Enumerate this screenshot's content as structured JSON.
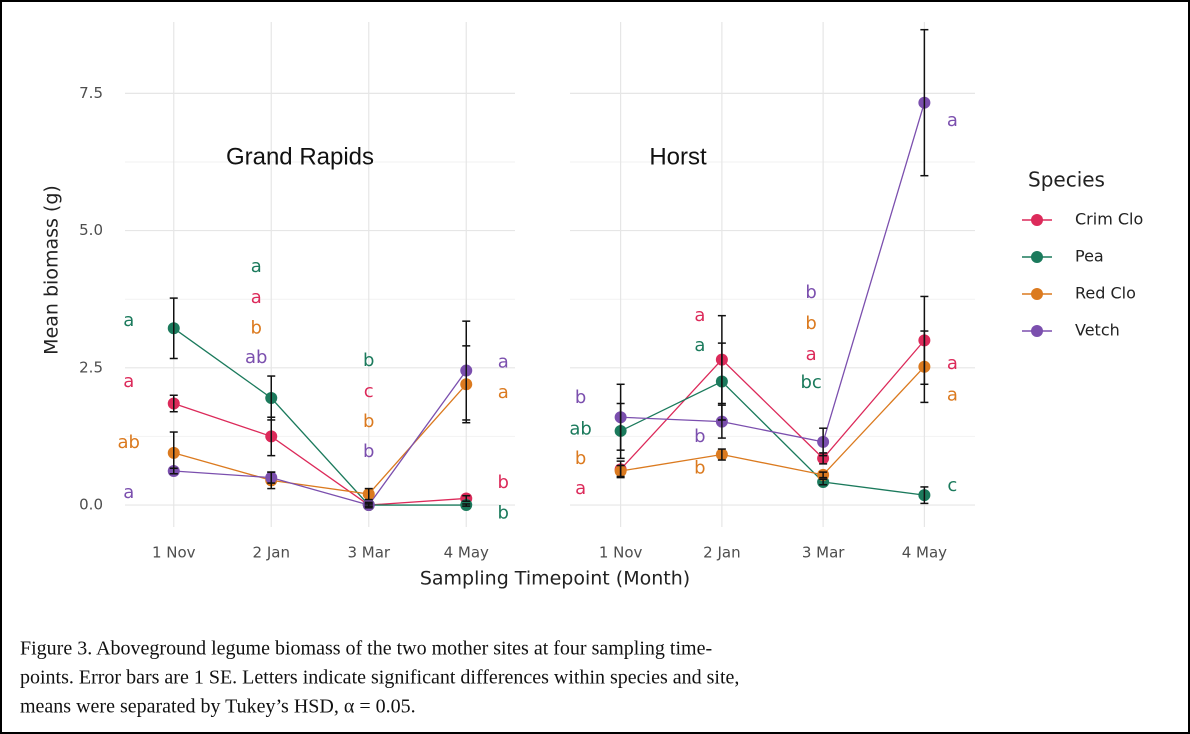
{
  "chart_data": {
    "type": "line",
    "xlabel": "Sampling  Timepoint (Month)",
    "ylabel": "Mean biomass (g)",
    "legend_title": "Species",
    "categories": [
      "1 Nov",
      "2 Jan",
      "3 Mar",
      "4 May"
    ],
    "ylim": [
      -0.4,
      8.8
    ],
    "yticks": [
      {
        "value": 0,
        "label": "0.0"
      },
      2.5,
      {
        "value": 5,
        "label": "5.0"
      },
      7.5
    ],
    "minor_yticks": [
      1.25,
      3.75,
      6.25
    ],
    "grid": true,
    "series": [
      {
        "name": "Crim Clo",
        "color": "#dc2a5a"
      },
      {
        "name": "Pea",
        "color": "#1b7a5c"
      },
      {
        "name": "Red Clo",
        "color": "#db7a1f"
      },
      {
        "name": "Vetch",
        "color": "#7b4fae"
      }
    ],
    "facets": [
      {
        "title": "Grand Rapids",
        "series": [
          {
            "values": [
              1.85,
              1.25,
              0.0,
              0.12
            ],
            "errors": [
              0.15,
              0.35,
              0.05,
              0.05
            ]
          },
          {
            "values": [
              3.22,
              1.95,
              0.0,
              0.0
            ],
            "errors": [
              0.55,
              0.4,
              0.02,
              0.02
            ]
          },
          {
            "values": [
              0.95,
              0.45,
              0.2,
              2.2
            ],
            "errors": [
              0.38,
              0.15,
              0.1,
              0.7
            ]
          },
          {
            "values": [
              0.62,
              0.5,
              0.0,
              2.45
            ],
            "errors": [
              0.05,
              0.1,
              0.02,
              0.9
            ]
          }
        ],
        "annotations": [
          {
            "text": "a",
            "x": "1 Nov",
            "y": 3.35,
            "color": "#1b7a5c"
          },
          {
            "text": "a",
            "x": "1 Nov",
            "y": 2.24,
            "color": "#dc2a5a"
          },
          {
            "text": "ab",
            "x": "1 Nov",
            "y": 1.13,
            "color": "#db7a1f"
          },
          {
            "text": "a",
            "x": "1 Nov",
            "y": 0.22,
            "color": "#7b4fae"
          },
          {
            "text": "a",
            "x": "2 Jan",
            "y": 4.34,
            "color": "#1b7a5c"
          },
          {
            "text": "a",
            "x": "2 Jan",
            "y": 3.77,
            "color": "#dc2a5a"
          },
          {
            "text": "b",
            "x": "2 Jan",
            "y": 3.22,
            "color": "#db7a1f"
          },
          {
            "text": "ab",
            "x": "2 Jan",
            "y": 2.68,
            "color": "#7b4fae"
          },
          {
            "text": "b",
            "x": "3 Mar",
            "y": 2.62,
            "color": "#1b7a5c"
          },
          {
            "text": "c",
            "x": "3 Mar",
            "y": 2.06,
            "color": "#dc2a5a"
          },
          {
            "text": "b",
            "x": "3 Mar",
            "y": 1.51,
            "color": "#db7a1f"
          },
          {
            "text": "b",
            "x": "3 Mar",
            "y": 0.97,
            "color": "#7b4fae"
          },
          {
            "text": "a",
            "x": "4 May",
            "y": 2.6,
            "color": "#7b4fae"
          },
          {
            "text": "a",
            "x": "4 May",
            "y": 2.04,
            "color": "#db7a1f"
          },
          {
            "text": "b",
            "x": "4 May",
            "y": 0.4,
            "color": "#dc2a5a"
          },
          {
            "text": "b",
            "x": "4 May",
            "y": -0.15,
            "color": "#1b7a5c"
          }
        ]
      },
      {
        "title": "Horst",
        "series": [
          {
            "values": [
              0.65,
              2.65,
              0.85,
              3.0
            ],
            "errors": [
              0.15,
              0.8,
              0.1,
              0.8
            ]
          },
          {
            "values": [
              1.35,
              2.25,
              0.42,
              0.18
            ],
            "errors": [
              0.5,
              0.7,
              0.05,
              0.15
            ]
          },
          {
            "values": [
              0.62,
              0.92,
              0.55,
              2.52
            ],
            "errors": [
              0.1,
              0.1,
              0.05,
              0.65
            ]
          },
          {
            "values": [
              1.6,
              1.52,
              1.15,
              7.33
            ],
            "errors": [
              0.6,
              0.3,
              0.25,
              1.33
            ]
          }
        ],
        "annotations": [
          {
            "text": "b",
            "x": "1 Nov",
            "y": 1.95,
            "color": "#7b4fae"
          },
          {
            "text": "ab",
            "x": "1 Nov",
            "y": 1.38,
            "color": "#1b7a5c"
          },
          {
            "text": "b",
            "x": "1 Nov",
            "y": 0.84,
            "color": "#db7a1f"
          },
          {
            "text": "a",
            "x": "1 Nov",
            "y": 0.29,
            "color": "#dc2a5a"
          },
          {
            "text": "a",
            "x": "2 Jan",
            "y": 3.44,
            "color": "#dc2a5a"
          },
          {
            "text": "a",
            "x": "2 Jan",
            "y": 2.9,
            "color": "#1b7a5c"
          },
          {
            "text": "b",
            "x": "2 Jan",
            "y": 1.24,
            "color": "#7b4fae"
          },
          {
            "text": "b",
            "x": "2 Jan",
            "y": 0.67,
            "color": "#db7a1f"
          },
          {
            "text": "b",
            "x": "3 Mar",
            "y": 3.86,
            "color": "#7b4fae"
          },
          {
            "text": "b",
            "x": "3 Mar",
            "y": 3.3,
            "color": "#db7a1f"
          },
          {
            "text": "a",
            "x": "3 Mar",
            "y": 2.73,
            "color": "#dc2a5a"
          },
          {
            "text": "bc",
            "x": "3 Mar",
            "y": 2.22,
            "color": "#1b7a5c"
          },
          {
            "text": "a",
            "x": "4 May",
            "y": 7.0,
            "color": "#7b4fae"
          },
          {
            "text": "a",
            "x": "4 May",
            "y": 2.57,
            "color": "#dc2a5a"
          },
          {
            "text": "a",
            "x": "4 May",
            "y": 2.0,
            "color": "#db7a1f"
          },
          {
            "text": "c",
            "x": "4 May",
            "y": 0.35,
            "color": "#1b7a5c"
          }
        ]
      }
    ],
    "caption": [
      "Figure 3. Aboveground legume biomass of the two mother sites at four sampling time-",
      "points. Error bars are 1 SE. Letters indicate significant differences within species and site,",
      "means were separated by Tukey’s HSD, α = 0.05."
    ]
  }
}
